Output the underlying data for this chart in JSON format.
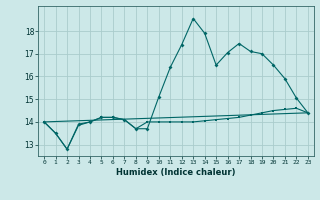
{
  "title": "",
  "xlabel": "Humidex (Indice chaleur)",
  "bg_color": "#cce8e8",
  "grid_color": "#aacccc",
  "line_color": "#006666",
  "xlim": [
    -0.5,
    23.5
  ],
  "ylim": [
    12.5,
    19.1
  ],
  "yticks": [
    13,
    14,
    15,
    16,
    17,
    18
  ],
  "xticks": [
    0,
    1,
    2,
    3,
    4,
    5,
    6,
    7,
    8,
    9,
    10,
    11,
    12,
    13,
    14,
    15,
    16,
    17,
    18,
    19,
    20,
    21,
    22,
    23
  ],
  "line1_x": [
    0,
    1,
    2,
    3,
    4,
    5,
    6,
    7,
    8,
    9,
    10,
    11,
    12,
    13,
    14,
    15,
    16,
    17,
    18,
    19,
    20,
    21,
    22,
    23
  ],
  "line1_y": [
    14.0,
    13.5,
    12.8,
    13.9,
    14.0,
    14.2,
    14.2,
    14.1,
    13.7,
    13.7,
    15.1,
    16.4,
    17.4,
    18.55,
    17.9,
    16.5,
    17.05,
    17.45,
    17.1,
    17.0,
    16.5,
    15.9,
    15.05,
    14.4
  ],
  "line2_x": [
    0,
    1,
    2,
    3,
    4,
    5,
    6,
    7,
    8,
    9,
    10,
    11,
    12,
    13,
    14,
    15,
    16,
    17,
    18,
    19,
    20,
    21,
    22,
    23
  ],
  "line2_y": [
    14.0,
    13.5,
    12.8,
    13.85,
    14.0,
    14.2,
    14.2,
    14.1,
    13.7,
    14.0,
    14.0,
    14.0,
    14.0,
    14.0,
    14.05,
    14.1,
    14.15,
    14.2,
    14.3,
    14.4,
    14.5,
    14.55,
    14.6,
    14.4
  ],
  "line3_x": [
    0,
    23
  ],
  "line3_y": [
    14.0,
    14.4
  ]
}
